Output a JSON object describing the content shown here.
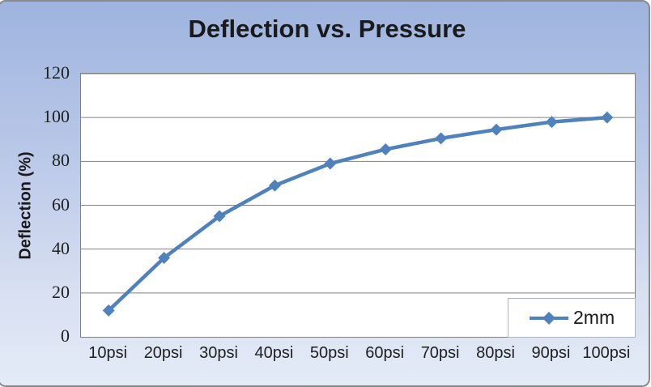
{
  "chart_data": {
    "type": "line",
    "title": "Deflection vs. Pressure",
    "xlabel": "",
    "ylabel": "Deflection (%)",
    "categories": [
      "10psi",
      "20psi",
      "30psi",
      "40psi",
      "50psi",
      "60psi",
      "70psi",
      "80psi",
      "90psi",
      "100psi"
    ],
    "series": [
      {
        "name": "2mm",
        "marker": "diamond",
        "color": "#4F81BD",
        "values": [
          12,
          36,
          55,
          69,
          79,
          85.5,
          90.5,
          94.5,
          98,
          100
        ]
      }
    ],
    "ylim": [
      0,
      120
    ],
    "yticks": [
      0,
      20,
      40,
      60,
      80,
      100,
      120
    ],
    "grid": true,
    "legend_position": "bottom-right",
    "legend_entries": [
      "2mm"
    ]
  },
  "style": {
    "accent_color": "#4F81BD",
    "background_top": "#9EB4DE",
    "background_bottom": "#E4EBF7",
    "plot_background": "#FFFFFF",
    "gridline_color": "#808080",
    "frame_border_color": "#8A8A8A",
    "text_color": "#1F1F1F"
  }
}
